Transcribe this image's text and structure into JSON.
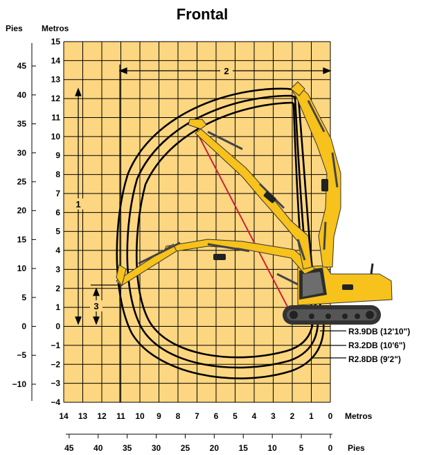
{
  "title": "Frontal",
  "left_axis": {
    "feet_label": "Pies",
    "meters_label": "Metros",
    "meter_ticks": [
      "15",
      "14",
      "13",
      "12",
      "11",
      "10",
      "9",
      "8",
      "7",
      "6",
      "5",
      "4",
      "3",
      "2",
      "1",
      "0",
      "−1",
      "−2",
      "−3",
      "−4"
    ],
    "feet_ticks": [
      "45",
      "40",
      "35",
      "30",
      "25",
      "20",
      "15",
      "10",
      "5",
      "0",
      "−5",
      "−10"
    ]
  },
  "bottom_axis": {
    "meters_label": "Metros",
    "feet_label": "Pies",
    "meter_ticks": [
      "14",
      "13",
      "12",
      "11",
      "10",
      "9",
      "8",
      "7",
      "6",
      "5",
      "4",
      "3",
      "2",
      "1",
      "0"
    ],
    "feet_ticks": [
      "45",
      "40",
      "35",
      "30",
      "25",
      "20",
      "15",
      "10",
      "5",
      "0"
    ]
  },
  "dimensions": {
    "d1": "1",
    "d2": "2",
    "d3": "3"
  },
  "legend": [
    {
      "label": "R3.9DB (12'10\")"
    },
    {
      "label": "R3.2DB (10'6\")"
    },
    {
      "label": "R2.8DB (9'2\")"
    }
  ],
  "colors": {
    "grid_fill": "#fcd681",
    "grid_line": "#000000",
    "machine_yellow": "#f6c21b",
    "envelope": "#000000",
    "reach_line": "#cc1f3a",
    "track": "#333333"
  }
}
